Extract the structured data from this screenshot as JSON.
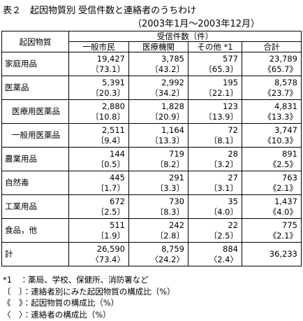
{
  "header": {
    "title": "表２　起因物質別 受信件数と連絡者のうちわけ",
    "period": "（2003年1月～2003年12月）"
  },
  "table": {
    "corner": "起因物質",
    "group": "受信件数（件）",
    "columns": [
      "一般市民",
      "医療機関",
      "その他 *1",
      "合計"
    ],
    "rows": [
      {
        "name": "家庭用品",
        "cells": [
          [
            "19,427",
            "〔73.1〕"
          ],
          [
            "3,785",
            "〔43.2〕"
          ],
          [
            "577",
            "〔65.3〕"
          ],
          [
            "23,789",
            "《65.7》"
          ]
        ]
      },
      {
        "name": "医薬品",
        "cells": [
          [
            "5,391",
            "〔20.3〕"
          ],
          [
            "2,992",
            "〔34.2〕"
          ],
          [
            "195",
            "〔22.1〕"
          ],
          [
            "8,578",
            "《23.7》"
          ]
        ]
      },
      {
        "name": "医療用医薬品",
        "sub": true,
        "cells": [
          [
            "2,880",
            "〔10.8〕"
          ],
          [
            "1,828",
            "〔20.9〕"
          ],
          [
            "123",
            "〔13.9〕"
          ],
          [
            "4,831",
            "《13.3》"
          ]
        ]
      },
      {
        "name": "一般用医薬品",
        "sub": true,
        "cells": [
          [
            "2,511",
            "〔9.4〕"
          ],
          [
            "1,164",
            "〔13.3〕"
          ],
          [
            "72",
            "〔8.1〕"
          ],
          [
            "3,747",
            "《10.3》"
          ]
        ]
      },
      {
        "name": "農業用品",
        "cells": [
          [
            "144",
            "〔0.5〕"
          ],
          [
            "719",
            "〔8.2〕"
          ],
          [
            "28",
            "〔3.2〕"
          ],
          [
            "891",
            "《2.5》"
          ]
        ]
      },
      {
        "name": "自然毒",
        "cells": [
          [
            "445",
            "〔1.7〕"
          ],
          [
            "291",
            "〔3.3〕"
          ],
          [
            "27",
            "〔3.1〕"
          ],
          [
            "763",
            "《2.1》"
          ]
        ]
      },
      {
        "name": "工業用品",
        "cells": [
          [
            "672",
            "〔2.5〕"
          ],
          [
            "730",
            "〔8.3〕"
          ],
          [
            "35",
            "〔4.0〕"
          ],
          [
            "1,437",
            "《4.0》"
          ]
        ]
      },
      {
        "name": "食品，他",
        "cells": [
          [
            "511",
            "〔1.9〕"
          ],
          [
            "242",
            "〔2.8〕"
          ],
          [
            "22",
            "〔2.5〕"
          ],
          [
            "775",
            "《2.1》"
          ]
        ]
      },
      {
        "name": "計",
        "cells": [
          [
            "26,590",
            "〈73.4〉"
          ],
          [
            "8,759",
            "〈24.2〉"
          ],
          [
            "884",
            "〈2.4〉"
          ],
          [
            "36,233"
          ]
        ]
      }
    ]
  },
  "notes": [
    "*1　：薬局、学校、保健所、消防署など",
    "〔　〕：連絡者別にみた起因物質の構成比（%）",
    "《　》：起因物質の構成比（%）",
    "〈　〉：連絡者の構成比（%）"
  ]
}
